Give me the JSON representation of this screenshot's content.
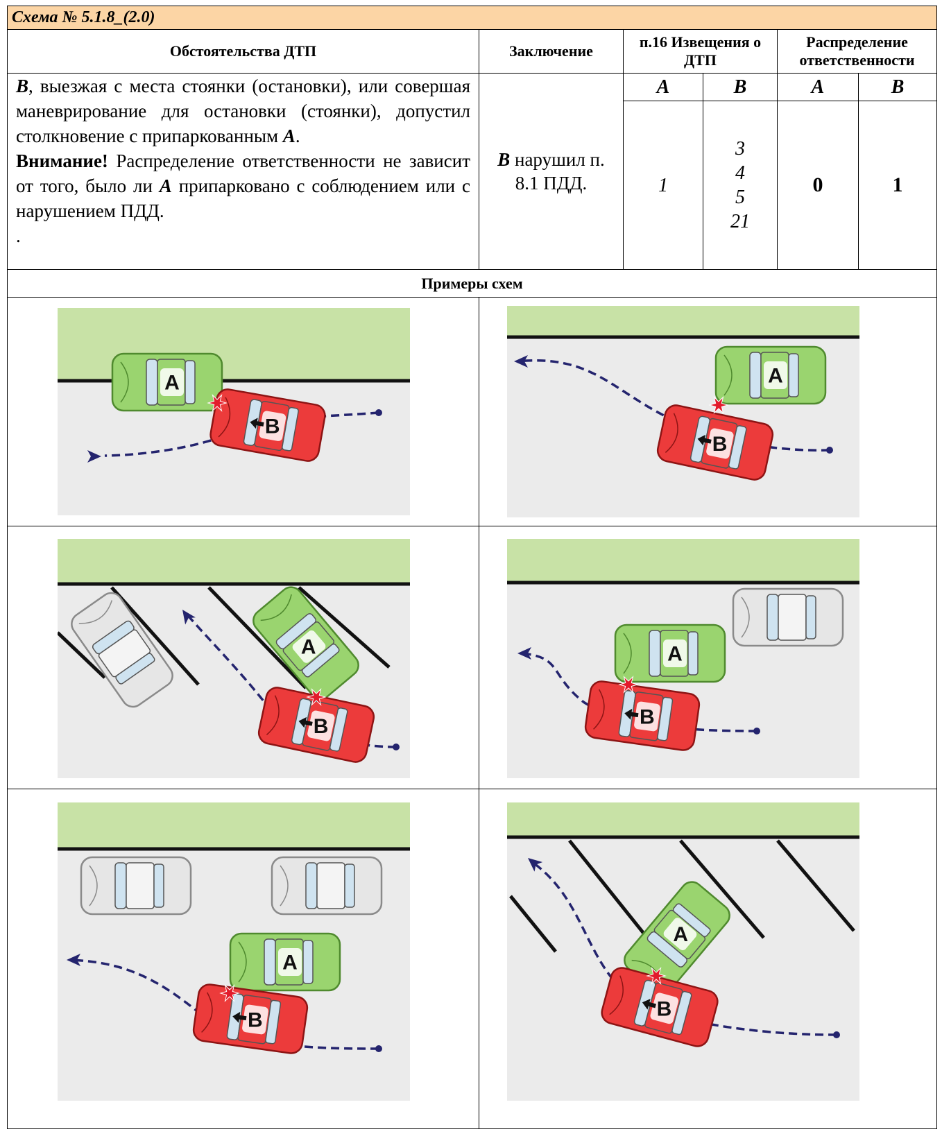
{
  "title": "Схема № 5.1.8_(2.0)",
  "headers": {
    "circumstances": "Обстоятельства ДТП",
    "conclusion": "Заключение",
    "notice": "п.16 Извещения о ДТП",
    "responsibility": "Распределение ответственности",
    "parties": [
      "А",
      "В"
    ]
  },
  "circumstances": [
    [
      "В",
      ", выезжая с места стоянки (остановки), или совершая маневрирование для остановки (стоянки), допустил столкновение с припаркованным ",
      "А",
      "."
    ],
    [
      "Внимание!",
      " Распределение ответственности не зависит от того, было ли ",
      "А",
      " припарковано с соблюдением или с нарушением ПДД."
    ],
    [
      "."
    ]
  ],
  "conclusion": [
    "В",
    " нарушил п. 8.1 ПДД."
  ],
  "notice": {
    "A": [
      1
    ],
    "B": [
      3,
      4,
      5,
      21
    ]
  },
  "responsibility": {
    "A": 0,
    "B": 1
  },
  "examples_title": "Примеры схем",
  "examples": [
    {
      "labels": [
        "A",
        "B"
      ]
    },
    {
      "labels": [
        "A",
        "B"
      ]
    },
    {
      "labels": [
        "A",
        "B"
      ]
    },
    {
      "labels": [
        "A",
        "B"
      ]
    },
    {
      "labels": [
        "A",
        "B"
      ]
    },
    {
      "labels": [
        "A",
        "B"
      ]
    }
  ]
}
